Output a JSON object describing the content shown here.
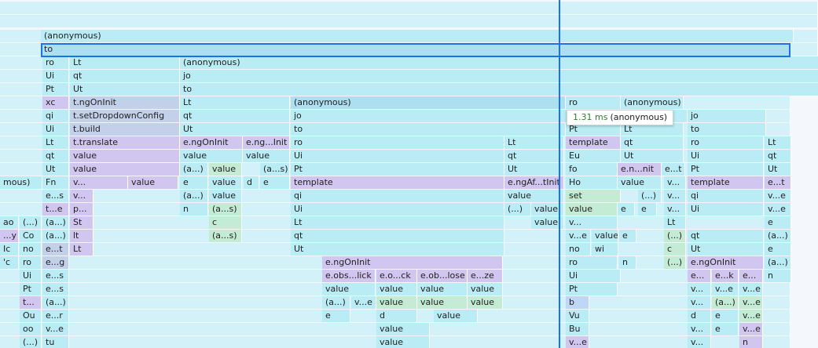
{
  "flame_chart": {
    "palette": {
      "cyan": "#b9ecf5",
      "selected": "#acdff0",
      "lavender": "#d1c6ef",
      "slate": "#c3d0e9",
      "green": "#c4ebd3",
      "blue": "#bfd7f5",
      "selection_outline": "#1a73e8"
    },
    "selected_entry": "to",
    "tooltip": {
      "duration": "1.31 ms",
      "name": "(anonymous)"
    },
    "rows": [
      [
        "(anonymous)"
      ],
      [
        "to"
      ],
      [
        "ro",
        "Lt",
        "(anonymous)"
      ],
      [
        "Ui",
        "qt",
        "jo"
      ],
      [
        "Pt",
        "Ut",
        "to"
      ],
      [
        "xc",
        "t.ngOnInit",
        "Lt",
        "(anonymous)",
        "ro",
        "(anonymous)"
      ],
      [
        "qi",
        "t.setDropdownConfig",
        "qt",
        "jo",
        "jo"
      ],
      [
        "Ui",
        "t.build",
        "Ut",
        "to",
        "Pt",
        "Lt",
        "to"
      ],
      [
        "Lt",
        "t.translate",
        "e.ngOnInit",
        "e.ng...Init",
        "ro",
        "Lt",
        "template",
        "qt",
        "ro",
        "Lt"
      ],
      [
        "qt",
        "value",
        "value",
        "value",
        "Ui",
        "qt",
        "Eu",
        "Ut",
        "Ui",
        "qt"
      ],
      [
        "Ut",
        "value",
        "(a...)",
        "value",
        "(a...s)",
        "Pt",
        "Ut",
        "fo",
        "e.n...nit",
        "e...t",
        "Pt",
        "Ut"
      ],
      [
        "mous)",
        "Fn",
        "v...",
        "value",
        "e",
        "value",
        "d",
        "e",
        "template",
        "e.ngAf...tInit",
        "Ho",
        "value",
        "v...",
        "template",
        "e...t"
      ],
      [
        "e...s",
        "v...",
        "(a...)",
        "value",
        "qi",
        "value",
        "set",
        "(...)",
        "v...",
        "qi",
        "v...e"
      ],
      [
        "t...e",
        "p...",
        "n",
        "(a...s)",
        "Ui",
        "(...)",
        "value",
        "value",
        "e",
        "e",
        "v...",
        "Ui",
        "v...e"
      ],
      [
        "ao",
        "(...)",
        "(a...)",
        "St",
        "c",
        "Lt",
        "value",
        "v...",
        "Lt",
        "e"
      ],
      [
        "...y",
        "Co",
        "(a...)",
        "lt",
        "(a...s)",
        "qt",
        "v...e",
        "value",
        "e",
        "(...)",
        "qt",
        "(a...)"
      ],
      [
        "Ic",
        "no",
        "e...t",
        "Lt",
        "Ut",
        "no",
        "wi",
        "c",
        "Ut",
        "e"
      ],
      [
        "'c",
        "ro",
        "e...g",
        "e.ngOnInit",
        "ro",
        "n",
        "(...)",
        "e.ngOnInit",
        "(a...)"
      ],
      [
        "Ui",
        "e...s",
        "e.obs...lick",
        "e.o...ck",
        "e.ob...lose",
        "e...ze",
        "Ui",
        "e...",
        "e...k",
        "e...",
        "n"
      ],
      [
        "Pt",
        "e...s",
        "value",
        "value",
        "value",
        "value",
        "Pt",
        "v...",
        "v...e",
        "v...e"
      ],
      [
        "t...",
        "(a...)",
        "(a...)",
        "v...e",
        "value",
        "value",
        "value",
        "b",
        "v...",
        "(a...)",
        "v...e"
      ],
      [
        "Ou",
        "e...r",
        "e",
        "d",
        "value",
        "Vu",
        "d",
        "e",
        "v...e"
      ],
      [
        "oo",
        "v...e",
        "value",
        "Bu",
        "v...",
        "e",
        "v...e"
      ],
      [
        "(...)",
        "tu",
        "value",
        "v...e",
        "v...",
        "n"
      ]
    ]
  }
}
